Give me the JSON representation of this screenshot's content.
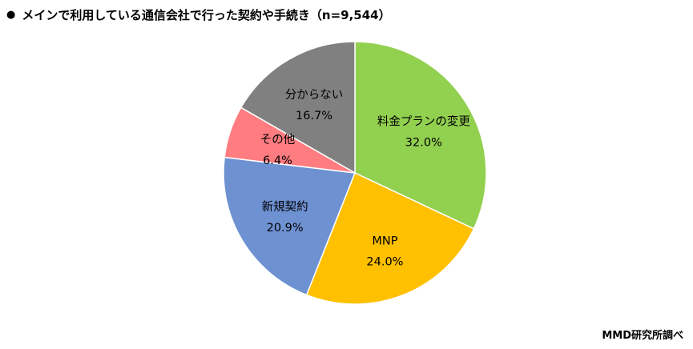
{
  "title": "メインで利用している通信会社で行った契約や手続き（n=9,544）",
  "title_bullet": "●",
  "source": "MMD研究所調べ",
  "chart_data": {
    "type": "pie",
    "title": "メインで利用している通信会社で行った契約や手続き（n=9,544）",
    "n": "9,544",
    "slices": [
      {
        "label": "料金プランの変更",
        "value": 32.0,
        "display": "32.0%",
        "color": "#92D050"
      },
      {
        "label": "MNP",
        "value": 24.0,
        "display": "24.0%",
        "color": "#FFC000"
      },
      {
        "label": "新規契約",
        "value": 20.9,
        "display": "20.9%",
        "color": "#6E91D2"
      },
      {
        "label": "その他",
        "value": 6.4,
        "display": "6.4%",
        "color": "#FF7C80"
      },
      {
        "label": "分からない",
        "value": 16.7,
        "display": "16.7%",
        "color": "#808080"
      }
    ]
  }
}
